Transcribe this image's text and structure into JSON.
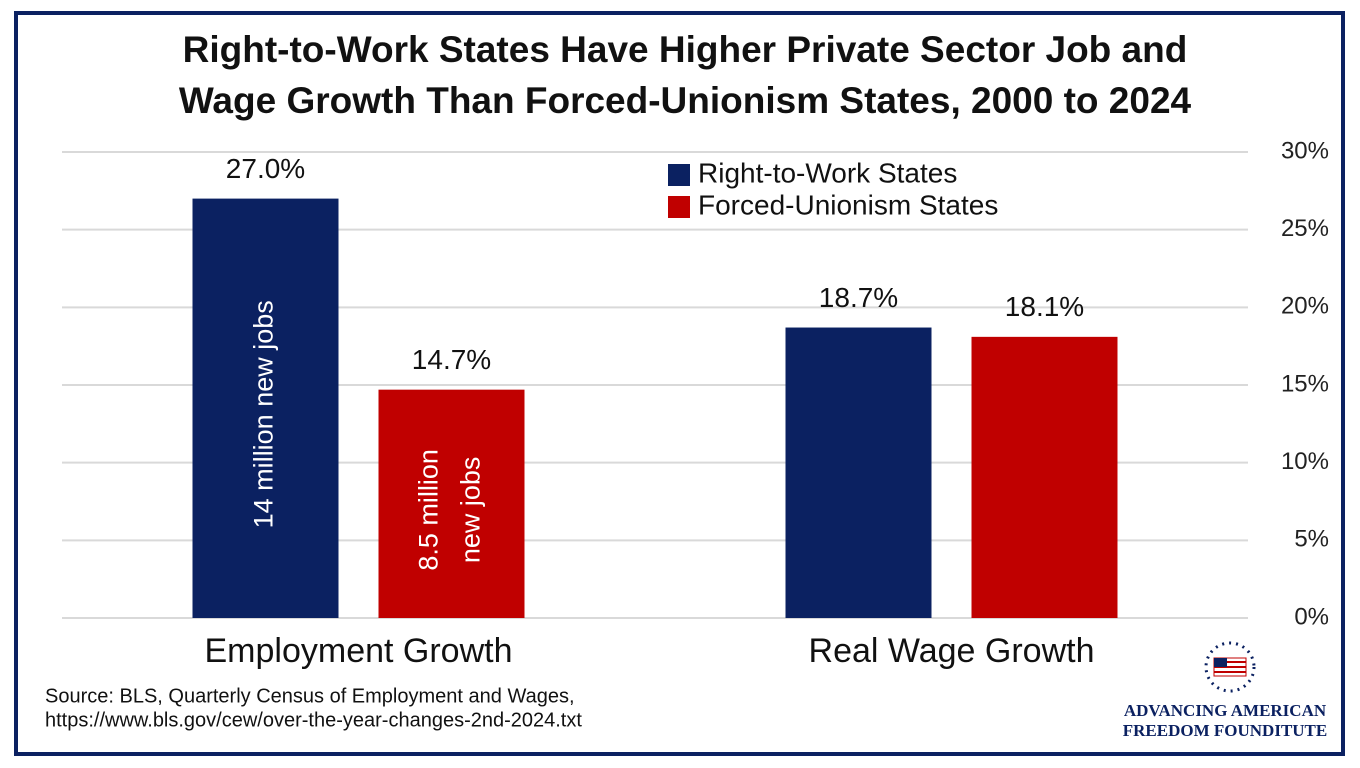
{
  "chart_data": {
    "type": "bar",
    "title": [
      "Right-to-Work States Have Higher Private Sector Job and",
      "Wage Growth Than Forced-Unionism States, 2000 to 2024"
    ],
    "categories": [
      "Employment Growth",
      "Real Wage Growth"
    ],
    "series": [
      {
        "name": "Right-to-Work States",
        "color": "#0b2161",
        "values": [
          27.0,
          18.7
        ],
        "value_labels": [
          "27.0%",
          "18.7%"
        ],
        "annotations": [
          [
            "14 million new jobs"
          ],
          null
        ]
      },
      {
        "name": "Forced-Unionism States",
        "color": "#c00000",
        "values": [
          14.7,
          18.1
        ],
        "value_labels": [
          "14.7%",
          "18.1%"
        ],
        "annotations": [
          [
            "8.5 million",
            "new jobs"
          ],
          null
        ]
      }
    ],
    "ylim": [
      0,
      30
    ],
    "yticks": [
      {
        "value": 0,
        "label": "0%"
      },
      {
        "value": 5,
        "label": "5%"
      },
      {
        "value": 10,
        "label": "10%"
      },
      {
        "value": 15,
        "label": "15%"
      },
      {
        "value": 20,
        "label": "20%"
      },
      {
        "value": 25,
        "label": "25%"
      },
      {
        "value": 30,
        "label": "30%"
      }
    ],
    "grid": true,
    "legend": "top-right",
    "source": [
      "Source: BLS, Quarterly Census of Employment and Wages,",
      "https://www.bls.gov/cew/over-the-year-changes-2nd-2024.txt"
    ],
    "logo": [
      "ADVANCING AMERICAN",
      "FREEDOM FOUNDITUTE"
    ]
  }
}
